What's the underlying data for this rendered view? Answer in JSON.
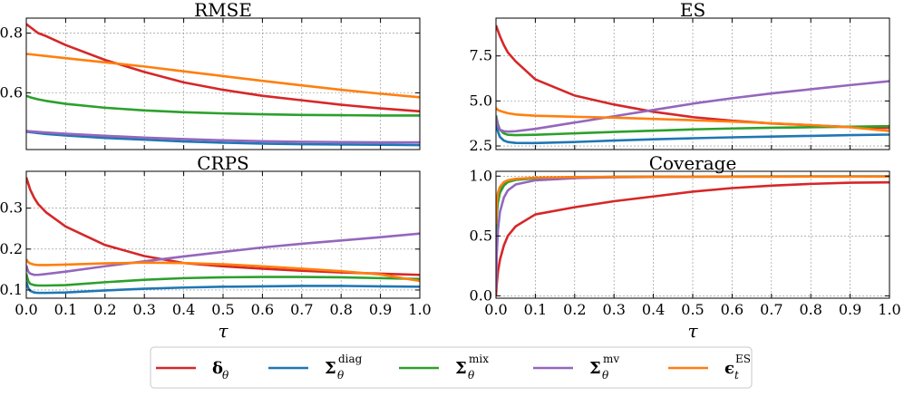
{
  "colors": {
    "delta": "#d62728",
    "diag": "#1f77b4",
    "mix": "#2ca02c",
    "mv": "#9467bd",
    "es": "#ff7f0e"
  },
  "chart_data": [
    {
      "type": "line",
      "title": "RMSE",
      "xlabel": "",
      "xlim": [
        0,
        1
      ],
      "ylim": [
        0.41,
        0.85
      ],
      "yticks": [
        "0.6",
        "0.8"
      ],
      "xticks": [
        "0.0",
        "0.1",
        "0.2",
        "0.3",
        "0.4",
        "0.5",
        "0.6",
        "0.7",
        "0.8",
        "0.9",
        "1.0"
      ],
      "show_xtick_labels": false,
      "x": [
        0,
        0.01,
        0.03,
        0.05,
        0.1,
        0.2,
        0.3,
        0.4,
        0.5,
        0.6,
        0.7,
        0.8,
        0.9,
        1.0
      ],
      "series": [
        {
          "name": "delta",
          "values": [
            0.83,
            0.82,
            0.8,
            0.79,
            0.76,
            0.71,
            0.67,
            0.635,
            0.61,
            0.59,
            0.575,
            0.56,
            0.548,
            0.538
          ]
        },
        {
          "name": "diag",
          "values": [
            0.47,
            0.468,
            0.465,
            0.462,
            0.457,
            0.449,
            0.443,
            0.437,
            0.433,
            0.43,
            0.428,
            0.427,
            0.426,
            0.425
          ]
        },
        {
          "name": "mix",
          "values": [
            0.59,
            0.585,
            0.578,
            0.573,
            0.563,
            0.55,
            0.541,
            0.535,
            0.531,
            0.528,
            0.526,
            0.525,
            0.524,
            0.524
          ]
        },
        {
          "name": "mv",
          "values": [
            0.472,
            0.471,
            0.469,
            0.467,
            0.463,
            0.456,
            0.45,
            0.445,
            0.441,
            0.438,
            0.436,
            0.435,
            0.434,
            0.434
          ]
        },
        {
          "name": "es",
          "values": [
            0.73,
            0.729,
            0.726,
            0.723,
            0.716,
            0.702,
            0.688,
            0.672,
            0.656,
            0.64,
            0.625,
            0.61,
            0.597,
            0.585
          ]
        }
      ]
    },
    {
      "type": "line",
      "title": "ES",
      "xlabel": "",
      "xlim": [
        0,
        1
      ],
      "ylim": [
        2.3,
        9.6
      ],
      "yticks": [
        "2.5",
        "5.0",
        "7.5"
      ],
      "xticks": [
        "0.0",
        "0.1",
        "0.2",
        "0.3",
        "0.4",
        "0.5",
        "0.6",
        "0.7",
        "0.8",
        "0.9",
        "1.0"
      ],
      "show_xtick_labels": false,
      "x": [
        0,
        0.005,
        0.01,
        0.02,
        0.03,
        0.05,
        0.1,
        0.2,
        0.3,
        0.4,
        0.5,
        0.6,
        0.7,
        0.8,
        0.9,
        1.0
      ],
      "series": [
        {
          "name": "delta",
          "values": [
            9.2,
            8.9,
            8.6,
            8.1,
            7.7,
            7.2,
            6.2,
            5.3,
            4.8,
            4.4,
            4.1,
            3.9,
            3.75,
            3.65,
            3.55,
            3.5
          ]
        },
        {
          "name": "diag",
          "values": [
            3.8,
            3.3,
            3.0,
            2.8,
            2.72,
            2.67,
            2.66,
            2.72,
            2.8,
            2.87,
            2.93,
            2.98,
            3.02,
            3.06,
            3.1,
            3.13
          ]
        },
        {
          "name": "mix",
          "values": [
            4.2,
            3.7,
            3.4,
            3.2,
            3.12,
            3.1,
            3.12,
            3.2,
            3.28,
            3.35,
            3.42,
            3.47,
            3.51,
            3.54,
            3.57,
            3.6
          ]
        },
        {
          "name": "mv",
          "values": [
            4.1,
            3.6,
            3.4,
            3.32,
            3.3,
            3.32,
            3.45,
            3.8,
            4.15,
            4.5,
            4.85,
            5.15,
            5.42,
            5.65,
            5.88,
            6.1
          ]
        },
        {
          "name": "es",
          "values": [
            4.6,
            4.5,
            4.45,
            4.38,
            4.32,
            4.25,
            4.18,
            4.12,
            4.07,
            4.0,
            3.93,
            3.85,
            3.76,
            3.66,
            3.54,
            3.33
          ]
        }
      ]
    },
    {
      "type": "line",
      "title": "CRPS",
      "xlabel": "τ",
      "xlim": [
        0,
        1
      ],
      "ylim": [
        0.08,
        0.39
      ],
      "yticks": [
        "0.1",
        "0.2",
        "0.3"
      ],
      "xticks": [
        "0.0",
        "0.1",
        "0.2",
        "0.3",
        "0.4",
        "0.5",
        "0.6",
        "0.7",
        "0.8",
        "0.9",
        "1.0"
      ],
      "show_xtick_labels": true,
      "x": [
        0,
        0.005,
        0.01,
        0.02,
        0.03,
        0.05,
        0.1,
        0.2,
        0.3,
        0.4,
        0.5,
        0.6,
        0.7,
        0.8,
        0.9,
        1.0
      ],
      "series": [
        {
          "name": "delta",
          "values": [
            0.375,
            0.36,
            0.345,
            0.325,
            0.31,
            0.29,
            0.255,
            0.21,
            0.183,
            0.166,
            0.158,
            0.152,
            0.147,
            0.143,
            0.14,
            0.137
          ]
        },
        {
          "name": "diag",
          "values": [
            0.12,
            0.105,
            0.098,
            0.094,
            0.093,
            0.093,
            0.094,
            0.099,
            0.103,
            0.106,
            0.108,
            0.109,
            0.11,
            0.11,
            0.109,
            0.108
          ]
        },
        {
          "name": "mix",
          "values": [
            0.14,
            0.122,
            0.115,
            0.112,
            0.111,
            0.111,
            0.112,
            0.119,
            0.125,
            0.129,
            0.131,
            0.132,
            0.132,
            0.131,
            0.129,
            0.127
          ]
        },
        {
          "name": "mv",
          "values": [
            0.16,
            0.145,
            0.14,
            0.137,
            0.137,
            0.139,
            0.145,
            0.158,
            0.17,
            0.182,
            0.193,
            0.204,
            0.213,
            0.221,
            0.229,
            0.238
          ]
        },
        {
          "name": "es",
          "values": [
            0.175,
            0.168,
            0.165,
            0.162,
            0.161,
            0.161,
            0.162,
            0.165,
            0.167,
            0.166,
            0.163,
            0.158,
            0.152,
            0.146,
            0.138,
            0.122
          ]
        }
      ]
    },
    {
      "type": "line",
      "title": "Coverage",
      "xlabel": "τ",
      "xlim": [
        0,
        1
      ],
      "ylim": [
        -0.02,
        1.04
      ],
      "yticks": [
        "0.0",
        "0.5",
        "1.0"
      ],
      "xticks": [
        "0.0",
        "0.1",
        "0.2",
        "0.3",
        "0.4",
        "0.5",
        "0.6",
        "0.7",
        "0.8",
        "0.9",
        "1.0"
      ],
      "show_xtick_labels": true,
      "x": [
        0,
        0.002,
        0.005,
        0.01,
        0.02,
        0.03,
        0.05,
        0.1,
        0.2,
        0.3,
        0.4,
        0.5,
        0.6,
        0.7,
        0.8,
        0.9,
        1.0
      ],
      "series": [
        {
          "name": "delta",
          "values": [
            0.0,
            0.1,
            0.2,
            0.3,
            0.42,
            0.5,
            0.58,
            0.68,
            0.74,
            0.79,
            0.83,
            0.87,
            0.9,
            0.92,
            0.935,
            0.945,
            0.948
          ]
        },
        {
          "name": "diag",
          "values": [
            0.5,
            0.7,
            0.8,
            0.87,
            0.93,
            0.955,
            0.97,
            0.985,
            0.99,
            0.993,
            0.995,
            0.996,
            0.997,
            0.997,
            0.997,
            0.997,
            0.997
          ]
        },
        {
          "name": "mix",
          "values": [
            0.45,
            0.68,
            0.78,
            0.86,
            0.92,
            0.95,
            0.968,
            0.982,
            0.99,
            0.993,
            0.995,
            0.996,
            0.996,
            0.997,
            0.997,
            0.997,
            0.997
          ]
        },
        {
          "name": "mv",
          "values": [
            0.05,
            0.35,
            0.55,
            0.7,
            0.82,
            0.88,
            0.93,
            0.965,
            0.983,
            0.99,
            0.993,
            0.995,
            0.996,
            0.996,
            0.997,
            0.997,
            0.997
          ]
        },
        {
          "name": "es",
          "values": [
            0.6,
            0.78,
            0.86,
            0.91,
            0.95,
            0.965,
            0.977,
            0.987,
            0.992,
            0.994,
            0.995,
            0.996,
            0.996,
            0.996,
            0.996,
            0.996,
            0.996
          ]
        }
      ]
    }
  ],
  "legend": {
    "items": [
      {
        "key": "delta",
        "main": "δ",
        "sub": "θ",
        "sup": ""
      },
      {
        "key": "diag",
        "main": "Σ",
        "sub": "θ",
        "sup": "diag"
      },
      {
        "key": "mix",
        "main": "Σ",
        "sub": "θ",
        "sup": "mix"
      },
      {
        "key": "mv",
        "main": "Σ",
        "sub": "θ",
        "sup": "mv"
      },
      {
        "key": "es",
        "main": "ϵ",
        "sub": "t",
        "sup": "ES"
      }
    ]
  }
}
